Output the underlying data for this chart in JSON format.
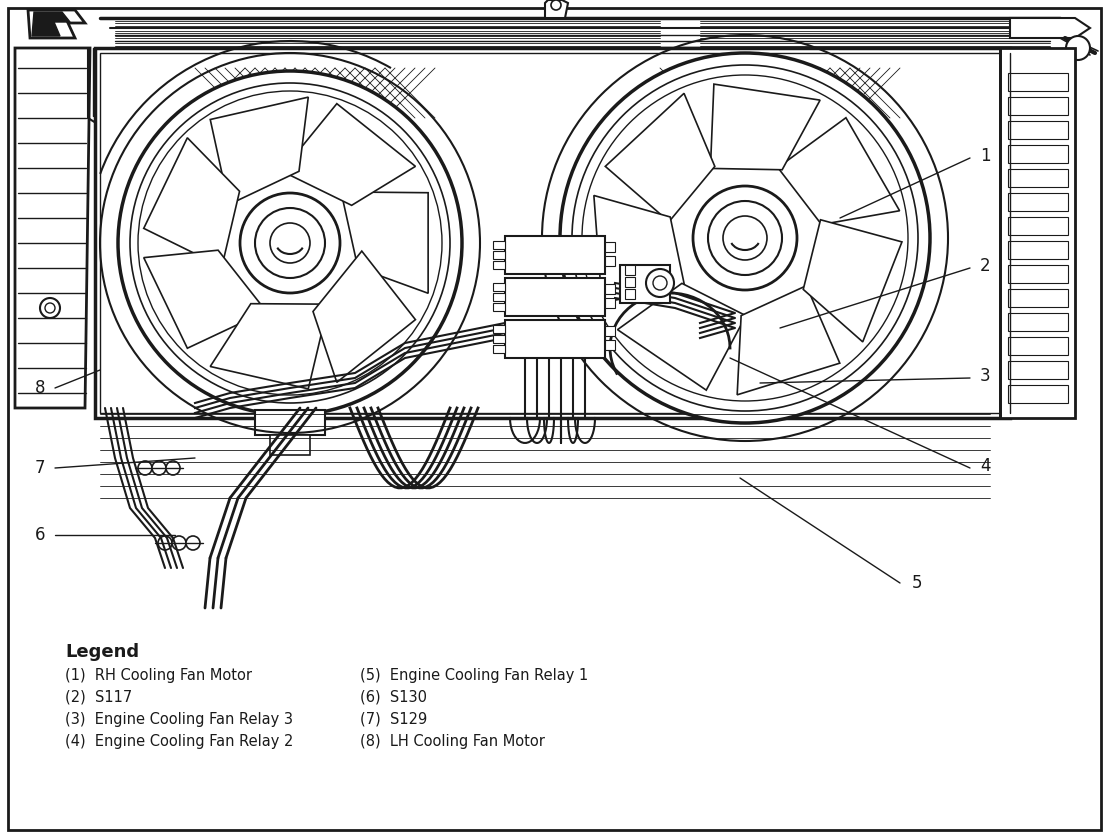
{
  "background_color": "#ffffff",
  "line_color": "#1a1a1a",
  "legend_title": "Legend",
  "legend_items_col1": [
    "(1)  RH Cooling Fan Motor",
    "(2)  S117",
    "(3)  Engine Cooling Fan Relay 3",
    "(4)  Engine Cooling Fan Relay 2"
  ],
  "legend_items_col2": [
    "(5)  Engine Cooling Fan Relay 1",
    "(6)  S130",
    "(7)  S129",
    "(8)  LH Cooling Fan Motor"
  ],
  "fig_width": 11.09,
  "fig_height": 8.38,
  "dpi": 100
}
